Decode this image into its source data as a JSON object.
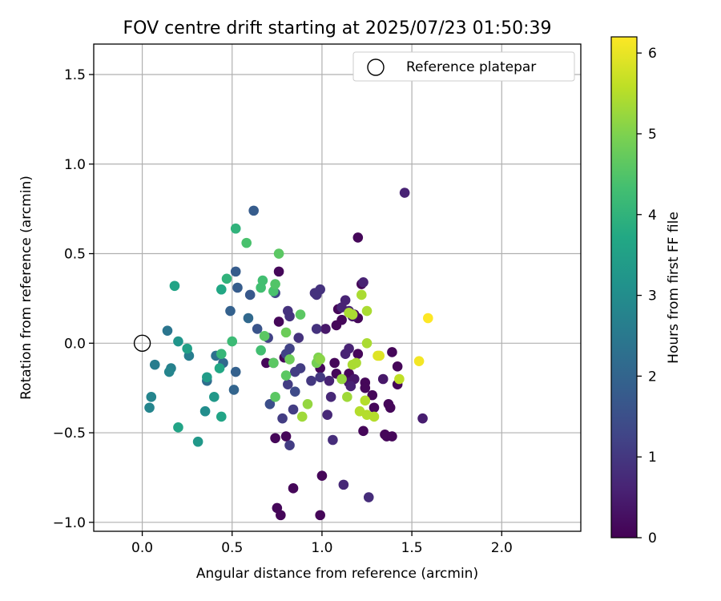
{
  "chart_data": {
    "type": "scatter",
    "title": "FOV centre drift starting at 2025/07/23 01:50:39",
    "xlabel": "Angular distance from reference (arcmin)",
    "ylabel": "Rotation from reference (arcmin)",
    "xlim": [
      -0.27,
      2.44
    ],
    "ylim": [
      -1.05,
      1.67
    ],
    "x_ticks": [
      0.0,
      0.5,
      1.0,
      1.5,
      2.0
    ],
    "x_tick_labels": [
      "0.0",
      "0.5",
      "1.0",
      "1.5",
      "2.0"
    ],
    "y_ticks": [
      -1.0,
      -0.5,
      0.0,
      0.5,
      1.0,
      1.5
    ],
    "y_tick_labels": [
      "−1.0",
      "−0.5",
      "0.0",
      "0.5",
      "1.0",
      "1.5"
    ],
    "grid": true,
    "legend": {
      "placement": "top-right",
      "entries": [
        {
          "label": "Reference platepar",
          "marker": "open-circle",
          "x": 0.0,
          "y": 0.0
        }
      ]
    },
    "colorbar": {
      "label": "Hours from first FF file",
      "colormap": "viridis",
      "range": [
        0,
        6.2
      ],
      "ticks": [
        0,
        1,
        2,
        3,
        4,
        5,
        6
      ],
      "tick_labels": [
        "0",
        "1",
        "2",
        "3",
        "4",
        "5",
        "6"
      ]
    },
    "points": [
      {
        "x": 0.77,
        "y": -0.96,
        "h": 0.1
      },
      {
        "x": 0.99,
        "y": -0.96,
        "h": 0.1
      },
      {
        "x": 0.75,
        "y": -0.92,
        "h": 0.1
      },
      {
        "x": 1.0,
        "y": -0.74,
        "h": 0.1
      },
      {
        "x": 0.84,
        "y": -0.81,
        "h": 0.1
      },
      {
        "x": 0.74,
        "y": -0.53,
        "h": 0.1
      },
      {
        "x": 0.8,
        "y": -0.52,
        "h": 0.1
      },
      {
        "x": 1.35,
        "y": -0.51,
        "h": 0.1
      },
      {
        "x": 1.36,
        "y": -0.52,
        "h": 0.1
      },
      {
        "x": 1.39,
        "y": -0.52,
        "h": 0.1
      },
      {
        "x": 1.23,
        "y": -0.49,
        "h": 0.1
      },
      {
        "x": 1.38,
        "y": -0.36,
        "h": 0.1
      },
      {
        "x": 1.37,
        "y": -0.34,
        "h": 0.1
      },
      {
        "x": 1.29,
        "y": -0.36,
        "h": 0.1
      },
      {
        "x": 1.28,
        "y": -0.29,
        "h": 0.1
      },
      {
        "x": 1.24,
        "y": -0.22,
        "h": 0.1
      },
      {
        "x": 1.24,
        "y": -0.25,
        "h": 0.1
      },
      {
        "x": 1.42,
        "y": -0.23,
        "h": 0.1
      },
      {
        "x": 1.42,
        "y": -0.13,
        "h": 0.1
      },
      {
        "x": 1.39,
        "y": -0.05,
        "h": 0.1
      },
      {
        "x": 1.07,
        "y": -0.11,
        "h": 0.1
      },
      {
        "x": 1.08,
        "y": -0.17,
        "h": 0.1
      },
      {
        "x": 1.2,
        "y": -0.06,
        "h": 0.1
      },
      {
        "x": 1.15,
        "y": -0.17,
        "h": 0.1
      },
      {
        "x": 0.76,
        "y": 0.12,
        "h": 0.1
      },
      {
        "x": 0.76,
        "y": 0.4,
        "h": 0.1
      },
      {
        "x": 1.18,
        "y": 0.16,
        "h": 0.1
      },
      {
        "x": 1.2,
        "y": 0.14,
        "h": 0.1
      },
      {
        "x": 1.2,
        "y": 0.59,
        "h": 0.1
      },
      {
        "x": 1.11,
        "y": 0.13,
        "h": 0.1
      },
      {
        "x": 1.08,
        "y": 0.1,
        "h": 0.1
      },
      {
        "x": 0.99,
        "y": -0.14,
        "h": 0.1
      },
      {
        "x": 0.69,
        "y": -0.11,
        "h": 0.1
      },
      {
        "x": 0.79,
        "y": -0.08,
        "h": 0.1
      },
      {
        "x": 1.22,
        "y": 0.33,
        "h": 0.1
      },
      {
        "x": 1.09,
        "y": 0.19,
        "h": 0.1
      },
      {
        "x": 1.34,
        "y": -0.2,
        "h": 0.4
      },
      {
        "x": 1.18,
        "y": -0.2,
        "h": 0.4
      },
      {
        "x": 1.15,
        "y": -0.22,
        "h": 0.4
      },
      {
        "x": 1.17,
        "y": 0.15,
        "h": 0.4
      },
      {
        "x": 1.02,
        "y": 0.08,
        "h": 0.4
      },
      {
        "x": 0.73,
        "y": -0.11,
        "h": 0.5
      },
      {
        "x": 1.56,
        "y": -0.42,
        "h": 0.5
      },
      {
        "x": 1.46,
        "y": 0.84,
        "h": 0.6
      },
      {
        "x": 1.23,
        "y": 0.34,
        "h": 0.6
      },
      {
        "x": 1.13,
        "y": 0.24,
        "h": 0.6
      },
      {
        "x": 1.11,
        "y": 0.2,
        "h": 0.6
      },
      {
        "x": 1.15,
        "y": 0.18,
        "h": 0.6
      },
      {
        "x": 1.16,
        "y": -0.24,
        "h": 0.6
      },
      {
        "x": 1.13,
        "y": -0.06,
        "h": 0.6
      },
      {
        "x": 1.15,
        "y": -0.03,
        "h": 0.6
      },
      {
        "x": 1.04,
        "y": -0.21,
        "h": 0.6
      },
      {
        "x": 1.05,
        "y": -0.3,
        "h": 0.7
      },
      {
        "x": 1.03,
        "y": -0.4,
        "h": 0.7
      },
      {
        "x": 1.12,
        "y": -0.79,
        "h": 0.7
      },
      {
        "x": 1.26,
        "y": -0.86,
        "h": 0.8
      },
      {
        "x": 1.06,
        "y": -0.54,
        "h": 0.8
      },
      {
        "x": 0.97,
        "y": 0.27,
        "h": 0.9
      },
      {
        "x": 0.99,
        "y": 0.3,
        "h": 0.9
      },
      {
        "x": 0.96,
        "y": 0.28,
        "h": 0.9
      },
      {
        "x": 0.97,
        "y": 0.08,
        "h": 0.9
      },
      {
        "x": 0.81,
        "y": 0.18,
        "h": 0.9
      },
      {
        "x": 0.82,
        "y": 0.15,
        "h": 0.9
      },
      {
        "x": 0.87,
        "y": 0.03,
        "h": 0.9
      },
      {
        "x": 0.94,
        "y": -0.21,
        "h": 1.0
      },
      {
        "x": 0.99,
        "y": -0.19,
        "h": 1.0
      },
      {
        "x": 0.85,
        "y": -0.16,
        "h": 1.1
      },
      {
        "x": 0.82,
        "y": -0.57,
        "h": 1.1
      },
      {
        "x": 0.78,
        "y": -0.42,
        "h": 1.1
      },
      {
        "x": 0.84,
        "y": -0.37,
        "h": 1.1
      },
      {
        "x": 0.81,
        "y": -0.23,
        "h": 1.1
      },
      {
        "x": 0.88,
        "y": -0.14,
        "h": 1.1
      },
      {
        "x": 0.8,
        "y": -0.06,
        "h": 1.2
      },
      {
        "x": 0.82,
        "y": -0.03,
        "h": 1.2
      },
      {
        "x": 0.7,
        "y": 0.03,
        "h": 1.2
      },
      {
        "x": 0.74,
        "y": 0.28,
        "h": 1.3
      },
      {
        "x": 0.85,
        "y": -0.27,
        "h": 1.4
      },
      {
        "x": 0.71,
        "y": -0.34,
        "h": 1.5
      },
      {
        "x": 0.64,
        "y": 0.08,
        "h": 1.6
      },
      {
        "x": 0.6,
        "y": 0.27,
        "h": 1.7
      },
      {
        "x": 0.62,
        "y": 0.74,
        "h": 1.8
      },
      {
        "x": 0.52,
        "y": 0.4,
        "h": 1.8
      },
      {
        "x": 0.53,
        "y": 0.31,
        "h": 1.8
      },
      {
        "x": 0.49,
        "y": 0.18,
        "h": 1.9
      },
      {
        "x": 0.52,
        "y": -0.16,
        "h": 1.9
      },
      {
        "x": 0.51,
        "y": -0.26,
        "h": 2.0
      },
      {
        "x": 0.45,
        "y": -0.11,
        "h": 2.1
      },
      {
        "x": 0.59,
        "y": 0.14,
        "h": 2.1
      },
      {
        "x": 0.36,
        "y": -0.21,
        "h": 2.2
      },
      {
        "x": 0.41,
        "y": -0.07,
        "h": 2.3
      },
      {
        "x": 0.14,
        "y": 0.07,
        "h": 2.4
      },
      {
        "x": 0.07,
        "y": -0.12,
        "h": 2.6
      },
      {
        "x": 0.26,
        "y": -0.07,
        "h": 2.6
      },
      {
        "x": 0.16,
        "y": -0.14,
        "h": 2.7
      },
      {
        "x": 0.15,
        "y": -0.16,
        "h": 2.8
      },
      {
        "x": 0.05,
        "y": -0.3,
        "h": 2.8
      },
      {
        "x": 0.04,
        "y": -0.36,
        "h": 2.8
      },
      {
        "x": 0.35,
        "y": -0.38,
        "h": 3.0
      },
      {
        "x": 0.2,
        "y": 0.01,
        "h": 3.2
      },
      {
        "x": 0.31,
        "y": -0.55,
        "h": 3.3
      },
      {
        "x": 0.4,
        "y": -0.3,
        "h": 3.3
      },
      {
        "x": 0.36,
        "y": -0.19,
        "h": 3.4
      },
      {
        "x": 0.25,
        "y": -0.03,
        "h": 3.5
      },
      {
        "x": 0.18,
        "y": 0.32,
        "h": 3.6
      },
      {
        "x": 0.2,
        "y": -0.47,
        "h": 3.6
      },
      {
        "x": 0.44,
        "y": -0.41,
        "h": 3.6
      },
      {
        "x": 0.43,
        "y": -0.14,
        "h": 3.7
      },
      {
        "x": 0.44,
        "y": 0.3,
        "h": 3.7
      },
      {
        "x": 0.52,
        "y": 0.64,
        "h": 4.0
      },
      {
        "x": 0.47,
        "y": 0.36,
        "h": 4.0
      },
      {
        "x": 0.44,
        "y": -0.06,
        "h": 4.1
      },
      {
        "x": 0.5,
        "y": 0.01,
        "h": 4.2
      },
      {
        "x": 0.66,
        "y": -0.04,
        "h": 4.3
      },
      {
        "x": 0.66,
        "y": 0.31,
        "h": 4.3
      },
      {
        "x": 0.67,
        "y": 0.35,
        "h": 4.3
      },
      {
        "x": 0.58,
        "y": 0.56,
        "h": 4.4
      },
      {
        "x": 0.73,
        "y": 0.29,
        "h": 4.4
      },
      {
        "x": 0.74,
        "y": 0.33,
        "h": 4.5
      },
      {
        "x": 0.76,
        "y": 0.5,
        "h": 4.6
      },
      {
        "x": 0.68,
        "y": 0.04,
        "h": 4.6
      },
      {
        "x": 0.74,
        "y": -0.3,
        "h": 4.6
      },
      {
        "x": 0.8,
        "y": -0.18,
        "h": 4.6
      },
      {
        "x": 0.73,
        "y": -0.11,
        "h": 4.6
      },
      {
        "x": 0.88,
        "y": 0.16,
        "h": 4.6
      },
      {
        "x": 0.8,
        "y": 0.06,
        "h": 4.8
      },
      {
        "x": 0.82,
        "y": -0.09,
        "h": 4.8
      },
      {
        "x": 0.97,
        "y": -0.11,
        "h": 4.9
      },
      {
        "x": 0.98,
        "y": -0.08,
        "h": 5.0
      },
      {
        "x": 0.99,
        "y": -0.09,
        "h": 5.1
      },
      {
        "x": 0.92,
        "y": -0.34,
        "h": 5.2
      },
      {
        "x": 0.89,
        "y": -0.41,
        "h": 5.3
      },
      {
        "x": 1.11,
        "y": -0.2,
        "h": 5.2
      },
      {
        "x": 1.14,
        "y": -0.3,
        "h": 5.3
      },
      {
        "x": 1.17,
        "y": -0.12,
        "h": 5.4
      },
      {
        "x": 1.19,
        "y": -0.11,
        "h": 5.4
      },
      {
        "x": 1.17,
        "y": 0.16,
        "h": 5.4
      },
      {
        "x": 1.15,
        "y": 0.17,
        "h": 5.4
      },
      {
        "x": 1.25,
        "y": 0.18,
        "h": 5.4
      },
      {
        "x": 1.22,
        "y": 0.27,
        "h": 5.4
      },
      {
        "x": 1.25,
        "y": 0.0,
        "h": 5.4
      },
      {
        "x": 1.21,
        "y": -0.38,
        "h": 5.5
      },
      {
        "x": 1.24,
        "y": -0.32,
        "h": 5.5
      },
      {
        "x": 1.25,
        "y": -0.4,
        "h": 5.5
      },
      {
        "x": 1.29,
        "y": -0.41,
        "h": 5.5
      },
      {
        "x": 1.43,
        "y": -0.2,
        "h": 5.6
      },
      {
        "x": 1.31,
        "y": -0.07,
        "h": 5.9
      },
      {
        "x": 1.32,
        "y": -0.07,
        "h": 5.9
      },
      {
        "x": 1.54,
        "y": -0.1,
        "h": 6.1
      },
      {
        "x": 1.59,
        "y": 0.14,
        "h": 6.2
      }
    ]
  }
}
